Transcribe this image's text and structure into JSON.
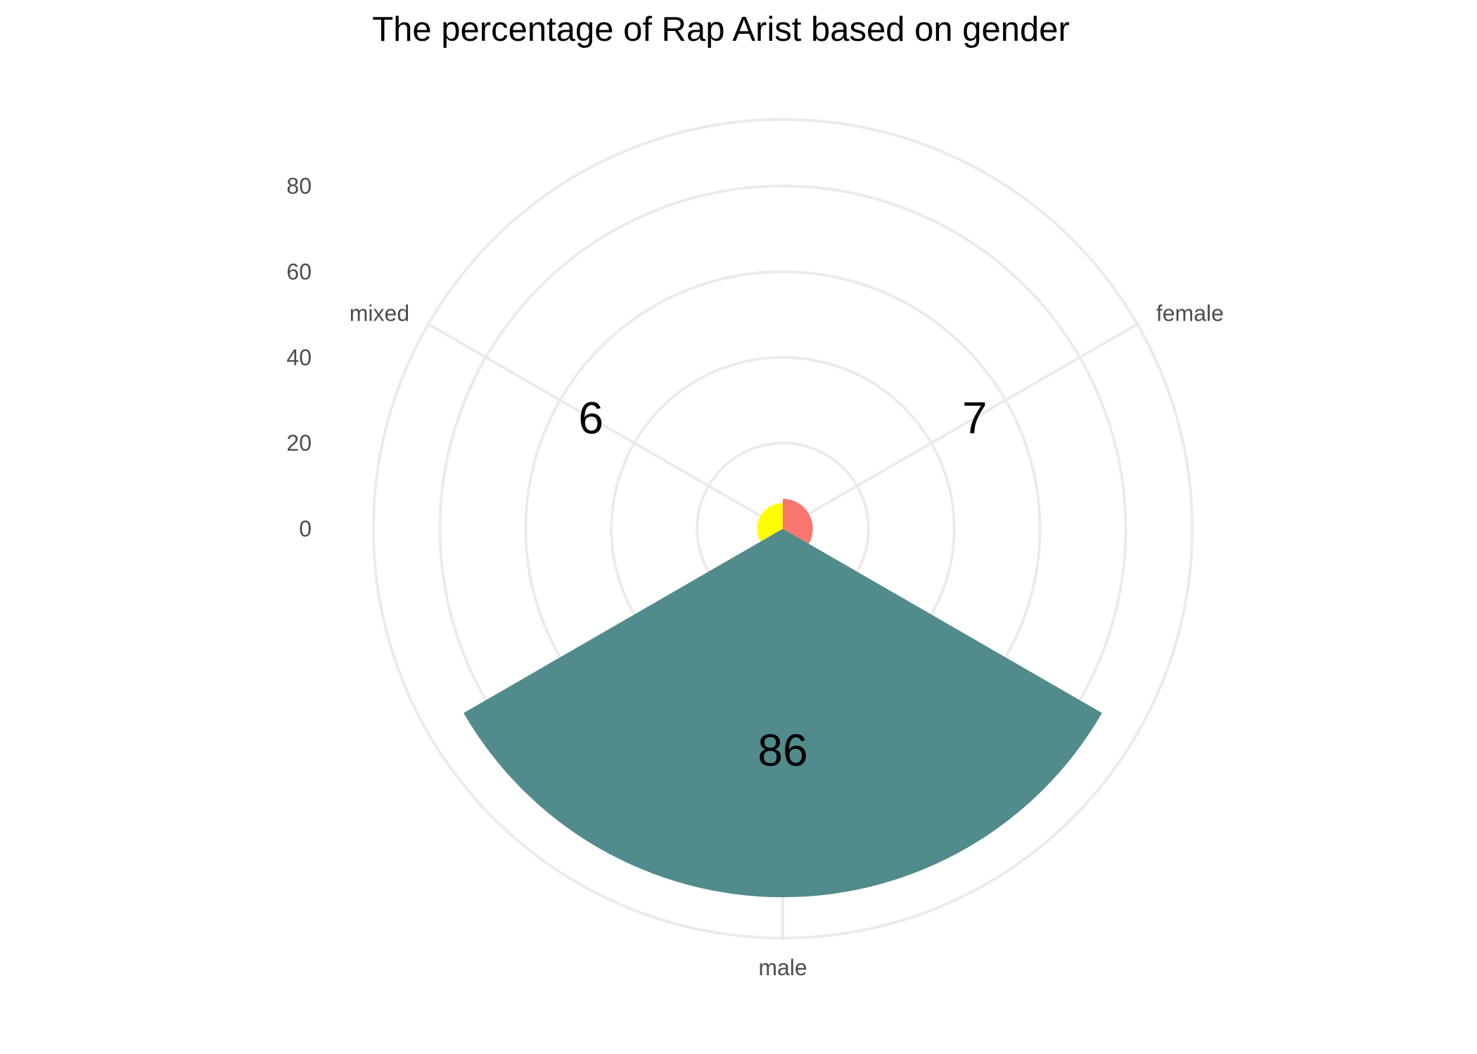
{
  "chart_data": {
    "type": "pie",
    "subtype": "coxcomb",
    "title": "The percentage of Rap Arist based on gender",
    "categories": [
      "female",
      "male",
      "mixed"
    ],
    "values": [
      7,
      86,
      6
    ],
    "data_labels": [
      "7",
      "86",
      "6"
    ],
    "colors": [
      "#f8766d",
      "#528b8b",
      "#ffff00"
    ],
    "radial_axis": {
      "ticks": [
        0,
        20,
        40,
        60,
        80
      ],
      "tick_labels": [
        "0",
        "20",
        "40",
        "60",
        "80"
      ],
      "range": [
        0,
        96
      ]
    },
    "grid": true,
    "legend": "none"
  }
}
